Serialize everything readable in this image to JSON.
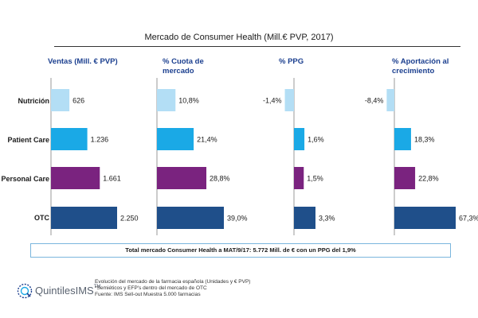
{
  "title": "Mercado de Consumer Health (Mill.€ PVP, 2017)",
  "colors": {
    "nutricion": "#b3def5",
    "patient_care": "#1aa9e6",
    "personal_care": "#7a237f",
    "otc": "#1f4f8a",
    "header": "#1b3f8f",
    "border": "#7ab6dd"
  },
  "chart_data": {
    "type": "bar",
    "orientation": "horizontal",
    "title": "Mercado de Consumer Health (Mill.€ PVP, 2017)",
    "categories": [
      "Nutrición",
      "Patient Care",
      "Personal Care",
      "OTC"
    ],
    "series": [
      {
        "name": "Ventas (Mill. € PVP)",
        "values": [
          626,
          1236,
          1661,
          2250
        ],
        "labels": [
          "626",
          "1.236",
          "1.661",
          "2.250"
        ]
      },
      {
        "name": "% Cuota de mercado",
        "values": [
          10.8,
          21.4,
          28.8,
          39.0
        ],
        "labels": [
          "10,8%",
          "21,4%",
          "28,8%",
          "39,0%"
        ]
      },
      {
        "name": "% PPG",
        "values": [
          -1.4,
          1.6,
          1.5,
          3.3
        ],
        "labels": [
          "-1,4%",
          "1,6%",
          "1,5%",
          "3,3%"
        ]
      },
      {
        "name": "% Aportación al crecimiento",
        "values": [
          -8.4,
          18.3,
          22.8,
          67.3
        ],
        "labels": [
          "-8,4%",
          "18,3%",
          "22,8%",
          "67,3%"
        ]
      }
    ]
  },
  "panel_headers": [
    "Ventas (Mill. € PVP)",
    "% Cuota de mercado",
    "% PPG",
    "% Aportación al crecimiento"
  ],
  "total_text": "Total mercado Consumer Health a MAT/9/17: 5.772 Mill. de € con un PPG del 1,9%",
  "logo_text": "QuintilesIMS",
  "logo_tm": "TM",
  "notes": [
    "Evolución del mercado de la farmacia española (Unidades y € PVP)",
    "*Semiéticos y EFP's dentro del mercado de OTC",
    "Fuente: IMS Sell-out Muestra 5.000 farmacias"
  ]
}
